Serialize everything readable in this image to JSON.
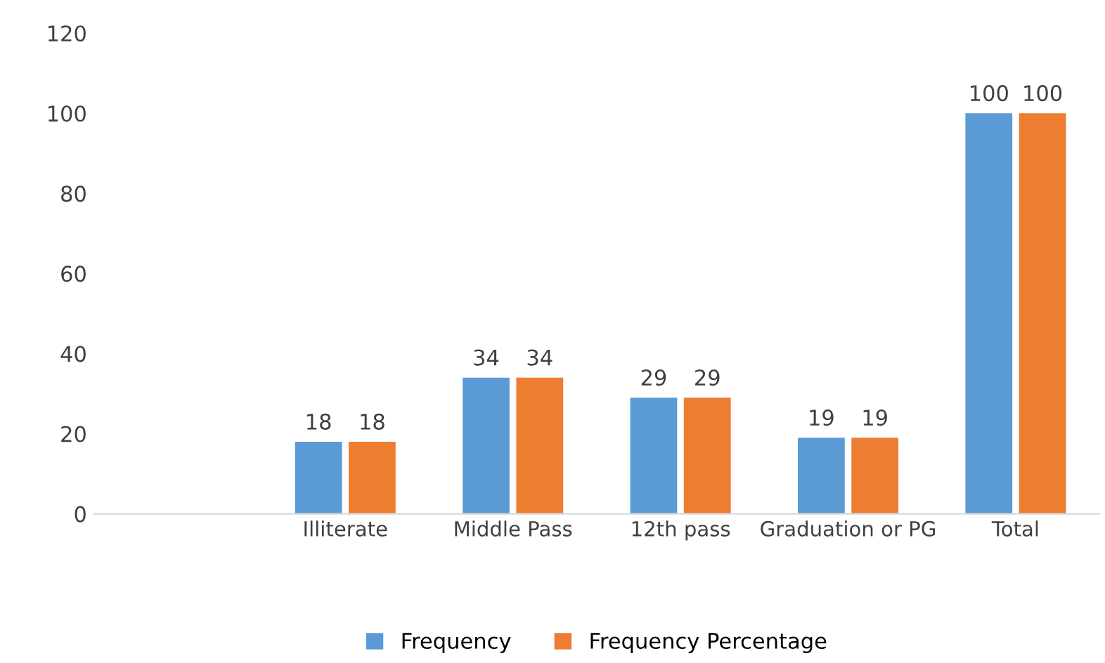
{
  "chart_data": {
    "type": "bar",
    "categories": [
      null,
      "Illiterate",
      "Middle Pass",
      "12th pass",
      "Graduation or PG",
      "Total"
    ],
    "series": [
      {
        "name": "Frequency",
        "color": "#5b9bd5",
        "values": [
          null,
          18,
          34,
          29,
          19,
          100
        ]
      },
      {
        "name": "Frequency Percentage",
        "color": "#ed7d31",
        "values": [
          null,
          18,
          34,
          29,
          19,
          100
        ]
      }
    ],
    "ylim": [
      0,
      120
    ],
    "yticks": [
      0,
      20,
      40,
      60,
      80,
      100,
      120
    ],
    "grid": false,
    "legend": "bottom",
    "data_labels": true
  }
}
